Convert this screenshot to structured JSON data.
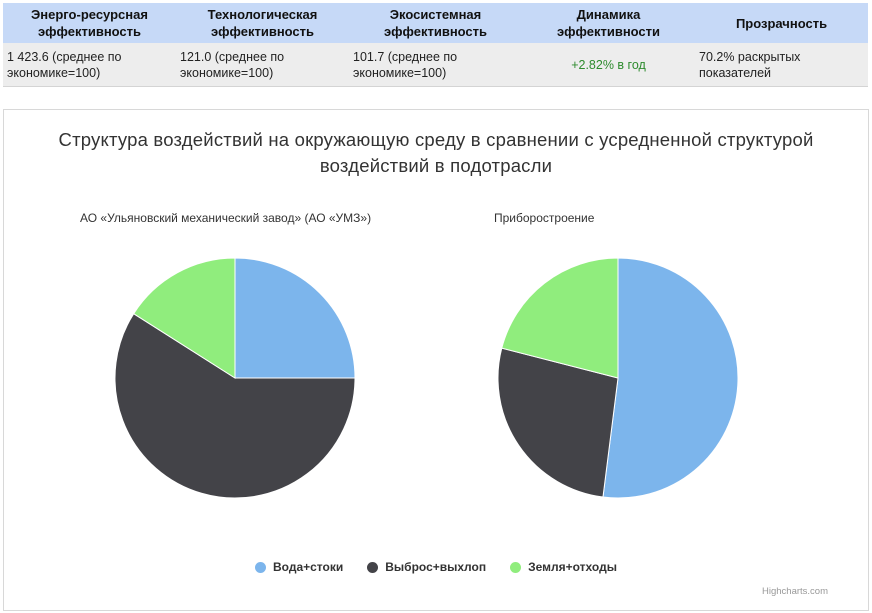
{
  "metrics": {
    "headers": [
      "Энерго-ресурсная эффективность",
      "Технологическая эффективность",
      "Экосистемная эффективность",
      "Динамика эффективности",
      "Прозрачность"
    ],
    "values": [
      "1 423.6 (среднее по экономике=100)",
      "121.0 (среднее по экономике=100)",
      "101.7 (среднее по экономике=100)",
      "+2.82% в год",
      "70.2% раскрытых показателей"
    ]
  },
  "chart_data": {
    "type": "pie",
    "title": "Структура воздействий на окружающую среду в сравнении с усредненной структурой воздействий в подотрасли",
    "legend_position": "bottom",
    "categories": [
      "Вода+стоки",
      "Выброс+выхлоп",
      "Земля+отходы"
    ],
    "colors": [
      "#7cb5ec",
      "#434348",
      "#90ed7d"
    ],
    "pies": [
      {
        "name": "АО «Ульяновский механический завод» (АО «УМЗ»)",
        "values": [
          25,
          59,
          16
        ]
      },
      {
        "name": "Приборостроение",
        "values": [
          52,
          27,
          21
        ]
      }
    ],
    "credits": "Highcharts.com"
  }
}
